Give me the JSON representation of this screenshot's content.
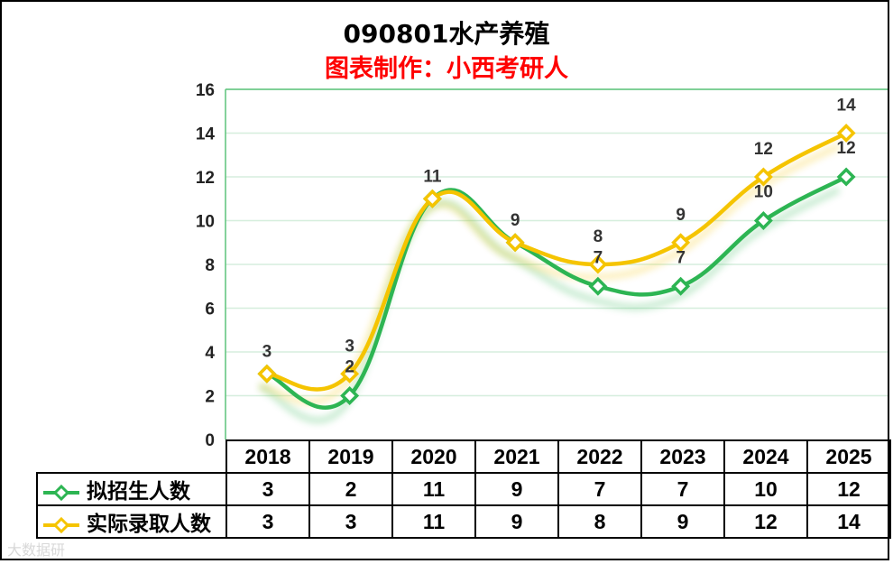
{
  "title": "090801水产养殖",
  "subtitle": "图表制作：小西考研人",
  "watermark": "大数据研",
  "chart_data": {
    "type": "line",
    "categories": [
      "2018",
      "2019",
      "2020",
      "2021",
      "2022",
      "2023",
      "2024",
      "2025"
    ],
    "ylim": [
      0,
      16
    ],
    "yticks": [
      0,
      2,
      4,
      6,
      8,
      10,
      12,
      14,
      16
    ],
    "grid": true,
    "legend": "data-table",
    "series": [
      {
        "name": "拟招生人数",
        "color": "#2db553",
        "values": [
          3,
          2,
          11,
          9,
          7,
          7,
          10,
          12
        ]
      },
      {
        "name": "实际录取人数",
        "color": "#f5c400",
        "values": [
          3,
          3,
          11,
          9,
          8,
          9,
          12,
          14
        ]
      }
    ]
  }
}
